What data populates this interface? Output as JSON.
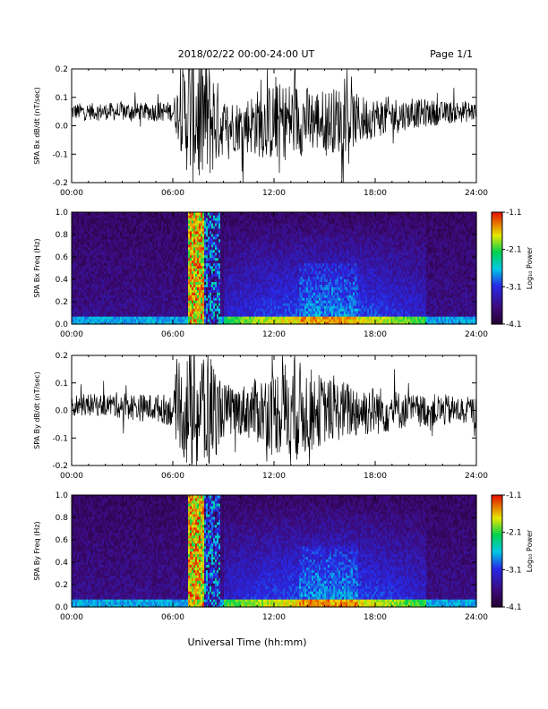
{
  "header": {
    "date_range": "2018/02/22  00:00-24:00 UT",
    "page": "Page 1/1"
  },
  "xlabel": "Universal Time (hh:mm)",
  "colorbar_label": "Log₁₀ Power",
  "chart_data": [
    {
      "type": "line",
      "ylabel": "SPA Bx dB/dt (nT/sec)",
      "xlim": [
        0,
        24
      ],
      "ylim": [
        -0.2,
        0.2
      ],
      "xticks": [
        "00:00",
        "06:00",
        "12:00",
        "18:00",
        "24:00"
      ],
      "yticks": [
        "-0.2",
        "-0.1",
        "0.0",
        "0.1",
        "0.2"
      ],
      "series": [
        {
          "values": [
            0.05,
            0.05,
            0.05,
            0.05,
            0.05,
            0.05,
            0.05,
            0.045,
            0.03,
            0.0,
            0.0,
            0.01,
            0.01,
            0.02,
            0.02,
            0.02,
            0.02,
            0.02,
            0.03,
            0.035,
            0.04,
            0.045,
            0.045,
            0.05,
            0.05
          ]
        }
      ],
      "envelope_halfwidth": [
        0.03,
        0.03,
        0.03,
        0.035,
        0.03,
        0.035,
        0.035,
        0.25,
        0.25,
        0.1,
        0.09,
        0.12,
        0.14,
        0.14,
        0.12,
        0.11,
        0.12,
        0.09,
        0.07,
        0.07,
        0.05,
        0.05,
        0.04,
        0.04,
        0.035
      ]
    },
    {
      "type": "heatmap",
      "ylabel": "SPA Bx Freq (Hz)",
      "xlim": [
        0,
        24
      ],
      "ylim": [
        0.0,
        1.0
      ],
      "xticks": [
        "00:00",
        "06:00",
        "12:00",
        "18:00",
        "24:00"
      ],
      "yticks": [
        "0.0",
        "0.2",
        "0.4",
        "0.6",
        "0.8",
        "1.0"
      ],
      "colorbar": {
        "range": [
          -4.1,
          -1.1
        ],
        "ticks": [
          "-1.1",
          "-2.1",
          "-3.1",
          "-4.1"
        ]
      }
    },
    {
      "type": "line",
      "ylabel": "SPA By dB/dt (nT/sec)",
      "xlim": [
        0,
        24
      ],
      "ylim": [
        -0.2,
        0.2
      ],
      "xticks": [
        "00:00",
        "06:00",
        "12:00",
        "18:00",
        "24:00"
      ],
      "yticks": [
        "-0.2",
        "-0.1",
        "0.0",
        "0.1",
        "0.2"
      ],
      "series": [
        {
          "values": [
            0.02,
            0.02,
            0.02,
            0.02,
            0.01,
            0.01,
            0.0,
            0.0,
            0.0,
            0.0,
            0.0,
            0.0,
            0.0,
            0.0,
            0.0,
            0.0,
            0.0,
            0.0,
            0.0,
            0.0,
            0.0,
            0.0,
            0.0,
            0.0,
            0.0
          ]
        }
      ],
      "envelope_halfwidth": [
        0.04,
        0.04,
        0.04,
        0.05,
        0.05,
        0.05,
        0.06,
        0.25,
        0.25,
        0.1,
        0.09,
        0.12,
        0.15,
        0.2,
        0.16,
        0.12,
        0.11,
        0.1,
        0.09,
        0.08,
        0.06,
        0.06,
        0.06,
        0.05,
        0.05
      ]
    },
    {
      "type": "heatmap",
      "ylabel": "SPA By Freq (Hz)",
      "xlim": [
        0,
        24
      ],
      "ylim": [
        0.0,
        1.0
      ],
      "xticks": [
        "00:00",
        "06:00",
        "12:00",
        "18:00",
        "24:00"
      ],
      "yticks": [
        "0.0",
        "0.2",
        "0.4",
        "0.6",
        "0.8",
        "1.0"
      ],
      "colorbar": {
        "range": [
          -4.1,
          -1.1
        ],
        "ticks": [
          "-1.1",
          "-2.1",
          "-3.1",
          "-4.1"
        ]
      }
    }
  ]
}
